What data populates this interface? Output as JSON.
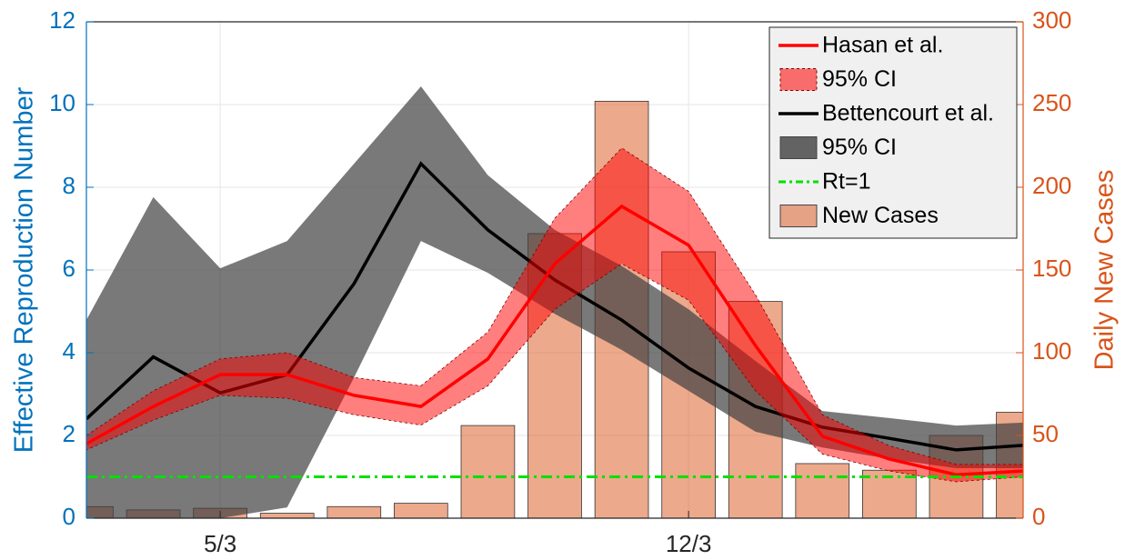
{
  "chart_data": {
    "type": "combo",
    "ylabel": "Effective Reproduction Number",
    "y2label": "Daily New Cases",
    "ycolor": "#0072bd",
    "y2color": "#d95319",
    "x": [
      0,
      1,
      2,
      3,
      4,
      5,
      6,
      7,
      8,
      9,
      10,
      11,
      12,
      13,
      14
    ],
    "xlim": [
      0,
      14
    ],
    "xticks": [
      {
        "value": 2,
        "label": "5/3"
      },
      {
        "value": 9,
        "label": "12/3"
      }
    ],
    "ylim": [
      0,
      12
    ],
    "yticks": [
      0,
      2,
      4,
      6,
      8,
      10,
      12
    ],
    "y2lim": [
      0,
      300
    ],
    "y2ticks": [
      0,
      50,
      100,
      150,
      200,
      250,
      300
    ],
    "grid": true,
    "legend": "upper right",
    "series": [
      {
        "name": "Hasan et al.",
        "type": "line",
        "color": "#ff0000",
        "values": [
          1.8,
          2.7,
          3.47,
          3.47,
          2.97,
          2.7,
          3.85,
          6.15,
          7.54,
          6.6,
          4.17,
          1.98,
          1.43,
          1.05,
          1.14
        ]
      },
      {
        "name": "95% CI",
        "type": "band",
        "color": "#ff0000",
        "upper": [
          2.0,
          3.08,
          3.85,
          4.0,
          3.4,
          3.2,
          4.5,
          7.25,
          8.95,
          7.9,
          5.4,
          2.5,
          1.75,
          1.3,
          1.3
        ],
        "lower": [
          1.65,
          2.37,
          2.97,
          2.9,
          2.5,
          2.25,
          3.2,
          5.05,
          6.15,
          5.27,
          3.08,
          1.55,
          1.14,
          0.88,
          1.0
        ]
      },
      {
        "name": "Bettencourt et al.",
        "type": "line",
        "color": "#000000",
        "values": [
          2.4,
          3.9,
          3.03,
          3.47,
          5.67,
          8.57,
          6.97,
          5.76,
          4.79,
          3.63,
          2.7,
          2.2,
          1.93,
          1.65,
          1.76
        ]
      },
      {
        "name": "95% CI",
        "type": "band",
        "color": "#404040",
        "upper": [
          4.79,
          7.76,
          6.04,
          6.7,
          8.57,
          10.44,
          8.29,
          6.97,
          6.1,
          5.05,
          3.8,
          2.59,
          2.42,
          2.24,
          2.31
        ],
        "lower": [
          0,
          0,
          0,
          0.26,
          3.4,
          6.7,
          5.93,
          4.94,
          4.07,
          3.08,
          2.09,
          1.71,
          1.43,
          1.21,
          1.21
        ]
      },
      {
        "name": "Rt=1",
        "type": "hline",
        "color": "#00e000",
        "value": 1
      },
      {
        "name": "New Cases",
        "type": "bar",
        "axis": "y2",
        "color": "#d95319",
        "values": [
          7,
          5,
          6,
          3,
          7,
          9,
          56,
          172,
          252,
          161,
          131,
          33,
          29,
          50,
          64
        ]
      }
    ]
  }
}
